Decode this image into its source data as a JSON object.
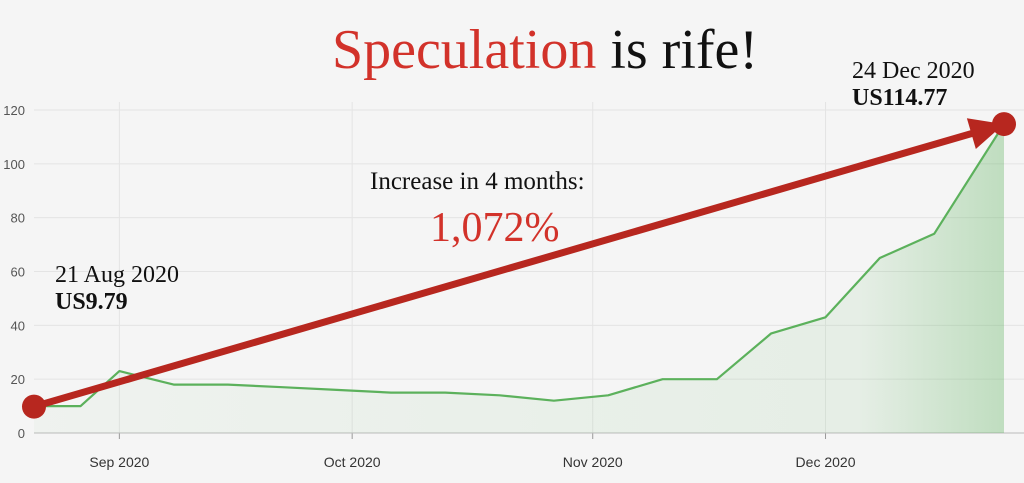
{
  "title": {
    "accent": "Speculation",
    "rest": " is rife!"
  },
  "annotations": {
    "start_date": "21 Aug 2020",
    "start_price": "US9.79",
    "end_date": "24 Dec 2020",
    "end_price": "US114.77",
    "increase_label": "Increase in 4 months:",
    "increase_value": "1,072%"
  },
  "colors": {
    "line": "#5cb15c",
    "area": "#5cb15c",
    "arrow": "#b7271f",
    "accent_text": "#d2322a"
  },
  "chart_data": {
    "type": "area",
    "title": "",
    "xlabel": "",
    "ylabel": "",
    "ylim": [
      0,
      120
    ],
    "yticks": [
      0,
      20,
      40,
      60,
      80,
      100,
      120
    ],
    "ytick_labels": [
      "0",
      "20",
      "40",
      "60",
      "80",
      "100",
      "120"
    ],
    "xticks": [
      {
        "date": "2020-09-01",
        "label": "Sep 2020"
      },
      {
        "date": "2020-10-01",
        "label": "Oct 2020"
      },
      {
        "date": "2020-11-01",
        "label": "Nov 2020"
      },
      {
        "date": "2020-12-01",
        "label": "Dec 2020"
      }
    ],
    "grid": true,
    "series": [
      {
        "points": [
          {
            "x": "2020-08-21",
            "y": 10
          },
          {
            "x": "2020-08-27",
            "y": 10
          },
          {
            "x": "2020-09-01",
            "y": 23
          },
          {
            "x": "2020-09-08",
            "y": 18
          },
          {
            "x": "2020-09-15",
            "y": 18
          },
          {
            "x": "2020-09-22",
            "y": 17
          },
          {
            "x": "2020-09-29",
            "y": 16
          },
          {
            "x": "2020-10-06",
            "y": 15
          },
          {
            "x": "2020-10-13",
            "y": 15
          },
          {
            "x": "2020-10-20",
            "y": 14
          },
          {
            "x": "2020-10-27",
            "y": 12
          },
          {
            "x": "2020-11-03",
            "y": 14
          },
          {
            "x": "2020-11-10",
            "y": 20
          },
          {
            "x": "2020-11-17",
            "y": 20
          },
          {
            "x": "2020-11-24",
            "y": 37
          },
          {
            "x": "2020-12-01",
            "y": 43
          },
          {
            "x": "2020-12-08",
            "y": 65
          },
          {
            "x": "2020-12-15",
            "y": 74
          },
          {
            "x": "2020-12-24",
            "y": 114.77
          }
        ]
      }
    ],
    "arrow": {
      "from": {
        "x": "2020-08-21",
        "y": 9.79
      },
      "to": {
        "x": "2020-12-24",
        "y": 114.77
      }
    }
  }
}
